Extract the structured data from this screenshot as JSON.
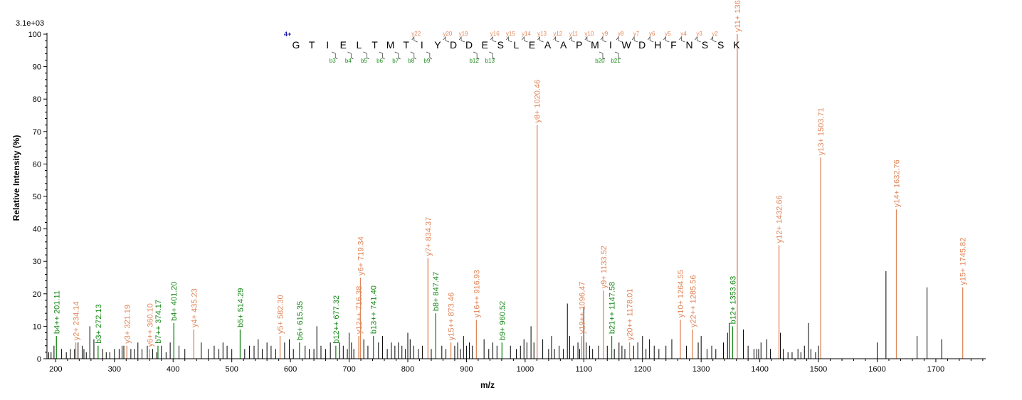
{
  "chart_data": {
    "type": "bar",
    "title": "",
    "scale_label": "3.1e+03",
    "xlabel": "m/z",
    "ylabel": "Relative   Intensity (%)",
    "xlim": [
      185,
      1785
    ],
    "ylim": [
      0,
      100
    ],
    "x_ticks": [
      200,
      300,
      400,
      500,
      600,
      700,
      800,
      900,
      1000,
      1100,
      1200,
      1300,
      1400,
      1500,
      1600,
      1700
    ],
    "y_ticks": [
      0,
      10,
      20,
      30,
      40,
      50,
      60,
      70,
      80,
      90,
      100
    ],
    "colors": {
      "y_ion": "#e0875a",
      "b_ion": "#1a8a1a",
      "other": "#000000",
      "charge": "#1a1ab0",
      "axis": "#000000"
    },
    "annotated_peaks": [
      {
        "type": "b",
        "label": "b4++ 201.11",
        "mz": 201.11,
        "intensity": 7
      },
      {
        "type": "y",
        "label": "y2+ 234.14",
        "mz": 234.14,
        "intensity": 5
      },
      {
        "type": "b",
        "label": "b3+ 272.13",
        "mz": 272.13,
        "intensity": 4
      },
      {
        "type": "y",
        "label": "y3+ 321.19",
        "mz": 321.19,
        "intensity": 4
      },
      {
        "type": "y",
        "label": "y6++ 360.10",
        "mz": 360.1,
        "intensity": 3
      },
      {
        "type": "b",
        "label": "b7++ 374.17",
        "mz": 374.17,
        "intensity": 4
      },
      {
        "type": "b",
        "label": "b4+ 401.20",
        "mz": 401.2,
        "intensity": 11
      },
      {
        "type": "y",
        "label": "y4+ 435.23",
        "mz": 435.23,
        "intensity": 9
      },
      {
        "type": "b",
        "label": "b5+ 514.29",
        "mz": 514.29,
        "intensity": 9
      },
      {
        "type": "y",
        "label": "y5+ 582.30",
        "mz": 582.3,
        "intensity": 7
      },
      {
        "type": "b",
        "label": "b6+ 615.35",
        "mz": 615.35,
        "intensity": 5
      },
      {
        "type": "b",
        "label": "b12++ 677.32",
        "mz": 677.32,
        "intensity": 4
      },
      {
        "type": "y",
        "label": "y12++ 716.38",
        "mz": 716.38,
        "intensity": 7
      },
      {
        "type": "y",
        "label": "y6+ 719.34",
        "mz": 719.34,
        "intensity": 25
      },
      {
        "type": "b",
        "label": "b13++ 741.40",
        "mz": 741.4,
        "intensity": 7
      },
      {
        "type": "y",
        "label": "y7+ 834.37",
        "mz": 834.37,
        "intensity": 31
      },
      {
        "type": "b",
        "label": "b8+ 847.47",
        "mz": 847.47,
        "intensity": 14
      },
      {
        "type": "y",
        "label": "y15++ 873.46",
        "mz": 873.46,
        "intensity": 5
      },
      {
        "type": "y",
        "label": "y16++ 916.93",
        "mz": 916.93,
        "intensity": 12
      },
      {
        "type": "b",
        "label": "b9+ 960.52",
        "mz": 960.52,
        "intensity": 5
      },
      {
        "type": "y",
        "label": "y8+ 1020.46",
        "mz": 1020.46,
        "intensity": 72
      },
      {
        "type": "y",
        "label": "y19++ 1096.47",
        "mz": 1096.47,
        "intensity": 7
      },
      {
        "type": "y",
        "label": "y9+ 1133.52",
        "mz": 1133.52,
        "intensity": 21
      },
      {
        "type": "b",
        "label": "b21++ 1147.58",
        "mz": 1147.58,
        "intensity": 7
      },
      {
        "type": "y",
        "label": "y20++ 1178.01",
        "mz": 1178.01,
        "intensity": 5
      },
      {
        "type": "y",
        "label": "y10+ 1264.55",
        "mz": 1264.55,
        "intensity": 12
      },
      {
        "type": "y",
        "label": "y22++ 1285.56",
        "mz": 1285.56,
        "intensity": 9
      },
      {
        "type": "b",
        "label": "b12+ 1353.63",
        "mz": 1353.63,
        "intensity": 10
      },
      {
        "type": "y",
        "label": "y11+ 1361.63",
        "mz": 1361.63,
        "intensity": 100
      },
      {
        "type": "y",
        "label": "y12+ 1432.66",
        "mz": 1432.66,
        "intensity": 35
      },
      {
        "type": "y",
        "label": "y13+ 1503.71",
        "mz": 1503.71,
        "intensity": 62
      },
      {
        "type": "y",
        "label": "y14+ 1632.76",
        "mz": 1632.76,
        "intensity": 46
      },
      {
        "type": "y",
        "label": "y15+ 1745.82",
        "mz": 1745.82,
        "intensity": 22
      }
    ],
    "unlabeled_peaks": [
      [
        188,
        2
      ],
      [
        192,
        2
      ],
      [
        197,
        4
      ],
      [
        210,
        3
      ],
      [
        218,
        2
      ],
      [
        225,
        3
      ],
      [
        232,
        3
      ],
      [
        238,
        5
      ],
      [
        245,
        4
      ],
      [
        248,
        3
      ],
      [
        252,
        2
      ],
      [
        258,
        10
      ],
      [
        265,
        6
      ],
      [
        280,
        3
      ],
      [
        286,
        2
      ],
      [
        292,
        2
      ],
      [
        300,
        3
      ],
      [
        308,
        3
      ],
      [
        313,
        4
      ],
      [
        316,
        4
      ],
      [
        328,
        3
      ],
      [
        334,
        3
      ],
      [
        340,
        5
      ],
      [
        347,
        3
      ],
      [
        356,
        4
      ],
      [
        365,
        3
      ],
      [
        372,
        2
      ],
      [
        380,
        4
      ],
      [
        388,
        2
      ],
      [
        395,
        5
      ],
      [
        410,
        4
      ],
      [
        420,
        3
      ],
      [
        448,
        5
      ],
      [
        460,
        3
      ],
      [
        470,
        4
      ],
      [
        478,
        3
      ],
      [
        485,
        5
      ],
      [
        492,
        4
      ],
      [
        500,
        3
      ],
      [
        522,
        3
      ],
      [
        530,
        4
      ],
      [
        538,
        4
      ],
      [
        545,
        6
      ],
      [
        552,
        3
      ],
      [
        560,
        5
      ],
      [
        567,
        4
      ],
      [
        575,
        3
      ],
      [
        590,
        5
      ],
      [
        598,
        6
      ],
      [
        605,
        3
      ],
      [
        625,
        4
      ],
      [
        632,
        3
      ],
      [
        640,
        3
      ],
      [
        645,
        10
      ],
      [
        652,
        4
      ],
      [
        660,
        3
      ],
      [
        668,
        5
      ],
      [
        684,
        5
      ],
      [
        690,
        4
      ],
      [
        697,
        3
      ],
      [
        700,
        8
      ],
      [
        704,
        5
      ],
      [
        708,
        3
      ],
      [
        725,
        6
      ],
      [
        732,
        4
      ],
      [
        750,
        5
      ],
      [
        757,
        7
      ],
      [
        765,
        3
      ],
      [
        772,
        5
      ],
      [
        778,
        4
      ],
      [
        784,
        5
      ],
      [
        790,
        4
      ],
      [
        796,
        3
      ],
      [
        800,
        8
      ],
      [
        804,
        6
      ],
      [
        810,
        4
      ],
      [
        818,
        3
      ],
      [
        825,
        4
      ],
      [
        840,
        3
      ],
      [
        858,
        4
      ],
      [
        865,
        3
      ],
      [
        880,
        4
      ],
      [
        885,
        5
      ],
      [
        890,
        3
      ],
      [
        895,
        7
      ],
      [
        900,
        4
      ],
      [
        905,
        5
      ],
      [
        910,
        4
      ],
      [
        930,
        6
      ],
      [
        938,
        3
      ],
      [
        945,
        5
      ],
      [
        952,
        4
      ],
      [
        975,
        4
      ],
      [
        985,
        3
      ],
      [
        992,
        4
      ],
      [
        998,
        6
      ],
      [
        1003,
        5
      ],
      [
        1010,
        10
      ],
      [
        1015,
        5
      ],
      [
        1030,
        6
      ],
      [
        1040,
        3
      ],
      [
        1045,
        7
      ],
      [
        1050,
        3
      ],
      [
        1058,
        4
      ],
      [
        1065,
        3
      ],
      [
        1072,
        17
      ],
      [
        1076,
        7
      ],
      [
        1082,
        4
      ],
      [
        1090,
        5
      ],
      [
        1093,
        3
      ],
      [
        1100,
        16
      ],
      [
        1104,
        5
      ],
      [
        1110,
        4
      ],
      [
        1115,
        3
      ],
      [
        1125,
        4
      ],
      [
        1140,
        4
      ],
      [
        1152,
        3
      ],
      [
        1160,
        5
      ],
      [
        1165,
        4
      ],
      [
        1170,
        3
      ],
      [
        1185,
        4
      ],
      [
        1192,
        5
      ],
      [
        1200,
        7
      ],
      [
        1206,
        3
      ],
      [
        1212,
        6
      ],
      [
        1220,
        4
      ],
      [
        1228,
        3
      ],
      [
        1240,
        4
      ],
      [
        1250,
        6
      ],
      [
        1275,
        4
      ],
      [
        1295,
        5
      ],
      [
        1300,
        7
      ],
      [
        1310,
        3
      ],
      [
        1318,
        4
      ],
      [
        1325,
        3
      ],
      [
        1338,
        5
      ],
      [
        1345,
        8
      ],
      [
        1348,
        11
      ],
      [
        1372,
        9
      ],
      [
        1380,
        4
      ],
      [
        1390,
        3
      ],
      [
        1395,
        3
      ],
      [
        1398,
        3
      ],
      [
        1402,
        5
      ],
      [
        1412,
        6
      ],
      [
        1418,
        3
      ],
      [
        1435,
        8
      ],
      [
        1440,
        3
      ],
      [
        1448,
        2
      ],
      [
        1455,
        2
      ],
      [
        1465,
        3
      ],
      [
        1470,
        2
      ],
      [
        1476,
        4
      ],
      [
        1483,
        11
      ],
      [
        1487,
        3
      ],
      [
        1495,
        2
      ],
      [
        1500,
        4
      ],
      [
        1600,
        5
      ],
      [
        1615,
        27
      ],
      [
        1668,
        7
      ],
      [
        1685,
        22
      ],
      [
        1710,
        6
      ]
    ]
  },
  "sequence": {
    "charge_label": "4+",
    "residues": [
      "G",
      "T",
      "I",
      "E",
      "L",
      "T",
      "M",
      "T",
      "I",
      "Y",
      "D",
      "D",
      "E",
      "S",
      "L",
      "E",
      "A",
      "A",
      "P",
      "M",
      "I",
      "W",
      "D",
      "H",
      "F",
      "N",
      "S",
      "S",
      "K"
    ],
    "y_ions": [
      {
        "after": 8,
        "label": "y22"
      },
      {
        "after": 10,
        "label": "y20"
      },
      {
        "after": 11,
        "label": "y19"
      },
      {
        "after": 13,
        "label": "y16"
      },
      {
        "after": 14,
        "label": "y15"
      },
      {
        "after": 15,
        "label": "y14"
      },
      {
        "after": 16,
        "label": "y13"
      },
      {
        "after": 17,
        "label": "y12"
      },
      {
        "after": 18,
        "label": "y11"
      },
      {
        "after": 19,
        "label": "y10"
      },
      {
        "after": 20,
        "label": "y9"
      },
      {
        "after": 21,
        "label": "y8"
      },
      {
        "after": 22,
        "label": "y7"
      },
      {
        "after": 23,
        "label": "y6"
      },
      {
        "after": 24,
        "label": "y5"
      },
      {
        "after": 25,
        "label": "y4"
      },
      {
        "after": 26,
        "label": "y3"
      },
      {
        "after": 27,
        "label": "y2"
      }
    ],
    "b_ions": [
      {
        "after": 3,
        "label": "b3"
      },
      {
        "after": 4,
        "label": "b4"
      },
      {
        "after": 5,
        "label": "b5"
      },
      {
        "after": 6,
        "label": "b6"
      },
      {
        "after": 7,
        "label": "b7"
      },
      {
        "after": 8,
        "label": "b8"
      },
      {
        "after": 9,
        "label": "b9"
      },
      {
        "after": 12,
        "label": "b12"
      },
      {
        "after": 13,
        "label": "b13"
      },
      {
        "after": 20,
        "label": "b20"
      },
      {
        "after": 21,
        "label": "b21"
      }
    ]
  }
}
